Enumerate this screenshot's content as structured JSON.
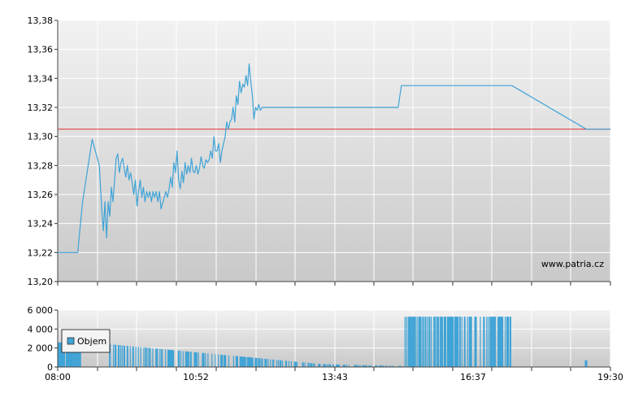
{
  "chart_data": [
    {
      "type": "line",
      "title": "",
      "xlabel": "",
      "ylabel": "",
      "ylim": [
        13.2,
        13.38
      ],
      "y_ticks": [
        "13,20",
        "13,22",
        "13,24",
        "13,26",
        "13,28",
        "13,30",
        "13,32",
        "13,34",
        "13,36",
        "13,38"
      ],
      "x_range": [
        0,
        690
      ],
      "grid": true,
      "watermark": "www.patria.cz",
      "reference_line": {
        "value": 13.305,
        "color": "#e03030"
      },
      "series": [
        {
          "color": "#3fa3d6",
          "x": [
            0,
            10,
            20,
            25,
            31,
            43,
            52,
            55,
            57,
            59,
            61,
            63,
            65,
            67,
            69,
            71,
            73,
            75,
            77,
            79,
            81,
            83,
            85,
            87,
            89,
            91,
            93,
            95,
            97,
            99,
            101,
            103,
            105,
            107,
            109,
            111,
            113,
            115,
            117,
            119,
            121,
            123,
            125,
            127,
            129,
            131,
            133,
            135,
            137,
            139,
            141,
            143,
            145,
            147,
            149,
            151,
            153,
            155,
            157,
            159,
            161,
            163,
            165,
            167,
            169,
            171,
            173,
            175,
            177,
            179,
            181,
            183,
            185,
            187,
            189,
            191,
            193,
            195,
            197,
            199,
            201,
            203,
            205,
            207,
            209,
            211,
            213,
            215,
            217,
            219,
            221,
            223,
            225,
            227,
            229,
            231,
            233,
            235,
            237,
            239,
            241,
            243,
            245,
            247,
            249,
            251,
            253,
            255,
            257,
            259,
            261,
            263,
            265,
            267,
            269,
            271,
            273,
            275,
            277,
            279,
            281,
            283,
            285,
            287,
            289,
            291,
            293,
            295,
            297,
            299,
            301,
            303,
            305,
            307,
            309,
            311,
            313,
            315,
            317,
            319,
            321,
            323,
            325,
            327,
            329,
            331,
            333,
            335,
            337,
            339,
            425,
            429,
            567,
            660,
            690
          ],
          "y": [
            13.22,
            13.22,
            13.22,
            13.22,
            13.255,
            13.298,
            13.28,
            13.25,
            13.235,
            13.255,
            13.23,
            13.255,
            13.245,
            13.265,
            13.255,
            13.27,
            13.285,
            13.288,
            13.275,
            13.282,
            13.285,
            13.278,
            13.272,
            13.28,
            13.27,
            13.275,
            13.268,
            13.26,
            13.27,
            13.252,
            13.262,
            13.27,
            13.258,
            13.265,
            13.255,
            13.262,
            13.258,
            13.262,
            13.255,
            13.262,
            13.258,
            13.262,
            13.255,
            13.262,
            13.25,
            13.254,
            13.258,
            13.262,
            13.258,
            13.264,
            13.272,
            13.265,
            13.282,
            13.275,
            13.29,
            13.27,
            13.264,
            13.276,
            13.268,
            13.282,
            13.274,
            13.28,
            13.275,
            13.285,
            13.276,
            13.275,
            13.28,
            13.274,
            13.278,
            13.286,
            13.28,
            13.278,
            13.284,
            13.282,
            13.284,
            13.29,
            13.285,
            13.3,
            13.29,
            13.29,
            13.295,
            13.282,
            13.29,
            13.295,
            13.3,
            13.31,
            13.305,
            13.31,
            13.312,
            13.32,
            13.31,
            13.328,
            13.322,
            13.338,
            13.33,
            13.336,
            13.334,
            13.342,
            13.335,
            13.35,
            13.338,
            13.328,
            13.312,
            13.32,
            13.318,
            13.322,
            13.318,
            13.32,
            13.32,
            13.32,
            13.32,
            13.32,
            13.32,
            13.32,
            13.32,
            13.32,
            13.32,
            13.32,
            13.32,
            13.32,
            13.32,
            13.32,
            13.32,
            13.32,
            13.32,
            13.32,
            13.32,
            13.32,
            13.32,
            13.32,
            13.32,
            13.32,
            13.32,
            13.32,
            13.32,
            13.32,
            13.32,
            13.32,
            13.32,
            13.32,
            13.32,
            13.32,
            13.32,
            13.32,
            13.32,
            13.32,
            13.32,
            13.32,
            13.32,
            13.32,
            13.32,
            13.335,
            13.335,
            13.305,
            13.305
          ]
        }
      ]
    },
    {
      "type": "bar",
      "title": "",
      "xlabel": "",
      "ylabel": "",
      "ylim": [
        0,
        6000
      ],
      "y_ticks": [
        "0",
        "2 000",
        "4 000",
        "6 000"
      ],
      "x_ticks": [
        "08:00",
        "10:52",
        "13:43",
        "16:37",
        "19:30"
      ],
      "legend": {
        "label": "Objem",
        "position": "top-left",
        "color": "#3fa3d6"
      },
      "series": [
        {
          "name": "Objem",
          "color": "#3fa3d6",
          "segments": [
            {
              "from": 0,
              "to": 8,
              "value": 2600
            },
            {
              "from": 10,
              "to": 28,
              "value": 2600
            },
            {
              "from": 64,
              "to": 330,
              "start": 2400,
              "end": 300
            },
            {
              "from": 330,
              "to": 430,
              "start": 300,
              "end": 100
            },
            {
              "from": 430,
              "to": 565,
              "value": 5300
            },
            {
              "from": 658,
              "to": 660,
              "value": 700
            }
          ]
        }
      ]
    }
  ]
}
